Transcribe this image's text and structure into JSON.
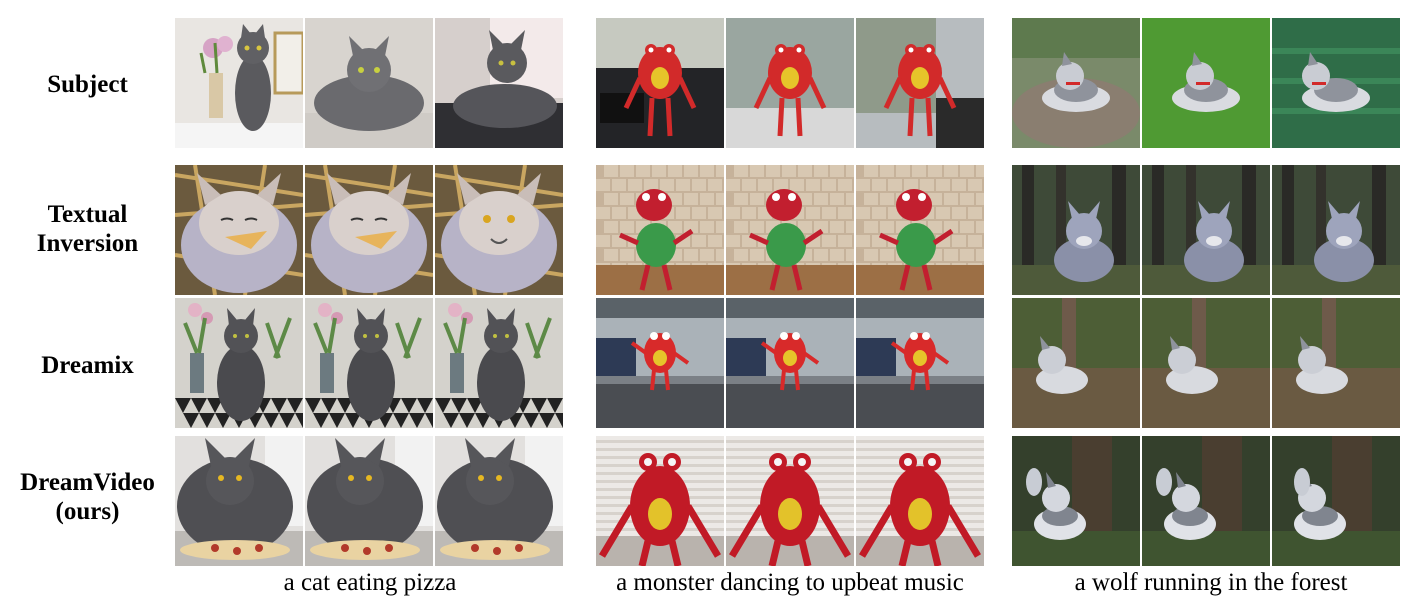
{
  "row_labels": {
    "subject": "Subject",
    "textual_inversion_line1": "Textual",
    "textual_inversion_line2": "Inversion",
    "dreamix": "Dreamix",
    "dreamvideo_line1": "DreamVideo",
    "dreamvideo_line2": "(ours)"
  },
  "captions": {
    "cat": "a cat eating pizza",
    "monster": "a monster dancing to upbeat music",
    "wolf": "a wolf running in the forest"
  },
  "rows": [
    "subject",
    "textual-inversion",
    "dreamix",
    "dreamvideo"
  ],
  "groups": [
    "cat",
    "monster",
    "wolf"
  ],
  "frames_per_cell": 3
}
